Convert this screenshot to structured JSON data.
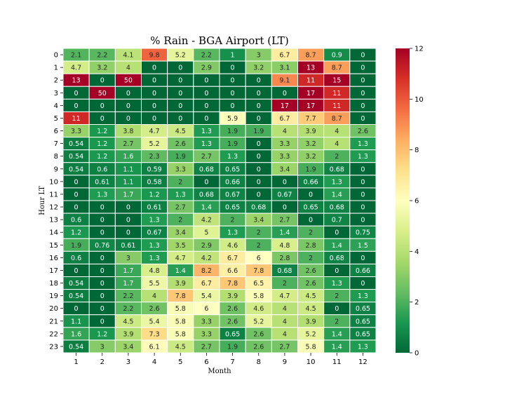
{
  "chart_data": {
    "type": "heatmap",
    "title": "% Rain - BGA Airport (LT)",
    "xlabel": "Month",
    "ylabel": "Hour LT",
    "x_categories": [
      "1",
      "2",
      "3",
      "4",
      "5",
      "6",
      "7",
      "8",
      "9",
      "10",
      "11",
      "12"
    ],
    "y_categories": [
      "0",
      "1",
      "2",
      "3",
      "4",
      "5",
      "6",
      "7",
      "8",
      "9",
      "10",
      "11",
      "12",
      "13",
      "14",
      "15",
      "16",
      "17",
      "18",
      "19",
      "20",
      "21",
      "22",
      "23"
    ],
    "values": [
      [
        2.1,
        2.2,
        4.1,
        9.8,
        5.2,
        2.2,
        1,
        3,
        6.7,
        8.7,
        0.9,
        0
      ],
      [
        4.7,
        3.2,
        4,
        0,
        0,
        2.9,
        0,
        3.2,
        3.1,
        13,
        8.7,
        0
      ],
      [
        13,
        0,
        50,
        0,
        0,
        0,
        0,
        0,
        9.1,
        11,
        15,
        0
      ],
      [
        0,
        50,
        0,
        0,
        0,
        0,
        0,
        0,
        0,
        17,
        11,
        0
      ],
      [
        0,
        0,
        0,
        0,
        0,
        0,
        0,
        0,
        17,
        17,
        11,
        0
      ],
      [
        11,
        0,
        0,
        0,
        0,
        0,
        5.9,
        0,
        6.7,
        7.7,
        8.7,
        0
      ],
      [
        3.3,
        1.2,
        3.8,
        4.7,
        4.5,
        1.3,
        1.9,
        1.9,
        4,
        3.9,
        4,
        2.6
      ],
      [
        0.54,
        1.2,
        2.7,
        5.2,
        2.6,
        1.3,
        1.9,
        0,
        3.3,
        3.2,
        4,
        1.3
      ],
      [
        0.54,
        1.2,
        1.6,
        2.3,
        1.9,
        2.7,
        1.3,
        0,
        3.3,
        3.2,
        2,
        1.3
      ],
      [
        0.54,
        0.6,
        1.1,
        0.59,
        3.3,
        0.68,
        0.65,
        0,
        3.4,
        1.9,
        0.68,
        0
      ],
      [
        0,
        0.61,
        1.1,
        0.58,
        2,
        0,
        0.66,
        0,
        0,
        0.66,
        1.3,
        0
      ],
      [
        0,
        1.3,
        1.7,
        1.2,
        1.3,
        0.68,
        0.67,
        0,
        0.67,
        0,
        1.4,
        0
      ],
      [
        0,
        0,
        0,
        0.61,
        2.7,
        1.4,
        0.65,
        0.68,
        0,
        0.65,
        0.68,
        0
      ],
      [
        0.6,
        0,
        0,
        1.3,
        2,
        4.2,
        2,
        3.4,
        2.7,
        0,
        0.7,
        0
      ],
      [
        1.2,
        0,
        0,
        0.67,
        3.4,
        5,
        1.3,
        2,
        1.4,
        2,
        0,
        0.75
      ],
      [
        1.9,
        0.76,
        0.61,
        1.3,
        3.5,
        2.9,
        4.6,
        2,
        4.8,
        2.8,
        1.4,
        1.5
      ],
      [
        0.6,
        0,
        3,
        1.3,
        4.7,
        4.2,
        6.7,
        6,
        2.8,
        2,
        0.68,
        0
      ],
      [
        0,
        0,
        1.7,
        4.8,
        1.4,
        8.2,
        6.6,
        7.8,
        0.68,
        2.6,
        0,
        0.66
      ],
      [
        0.54,
        0,
        1.7,
        5.5,
        3.9,
        6.7,
        7.8,
        6.5,
        2,
        2.6,
        1.3,
        0
      ],
      [
        0.54,
        0,
        2.2,
        4,
        7.8,
        5.4,
        3.9,
        5.8,
        4.7,
        4.5,
        2,
        1.3
      ],
      [
        0,
        0,
        2.2,
        2.6,
        5.8,
        6,
        2.6,
        4.6,
        4,
        4.5,
        0,
        0.65
      ],
      [
        1.1,
        0,
        4.5,
        5.4,
        5.8,
        3.3,
        2.6,
        5.2,
        4,
        3.9,
        2,
        0.65
      ],
      [
        1.6,
        1.2,
        3.9,
        7.3,
        5.8,
        3.3,
        0.65,
        2.6,
        4,
        5.2,
        1.4,
        0.65
      ],
      [
        0.54,
        3,
        3.4,
        6.1,
        4.5,
        2.7,
        1.9,
        2.6,
        2.7,
        5.8,
        1.4,
        1.3
      ]
    ],
    "colorbar": {
      "min": 0,
      "max": 12,
      "ticks": [
        0,
        2,
        4,
        6,
        8,
        10,
        12
      ]
    },
    "colormap": "RdYlGn_r",
    "colormap_stops": [
      "#006837",
      "#1a9850",
      "#66bd63",
      "#a6d96a",
      "#d9ef8b",
      "#ffffbf",
      "#fee08b",
      "#fdae61",
      "#f46d43",
      "#d73027",
      "#a50026"
    ],
    "cell_border_color": "#ffffff"
  }
}
